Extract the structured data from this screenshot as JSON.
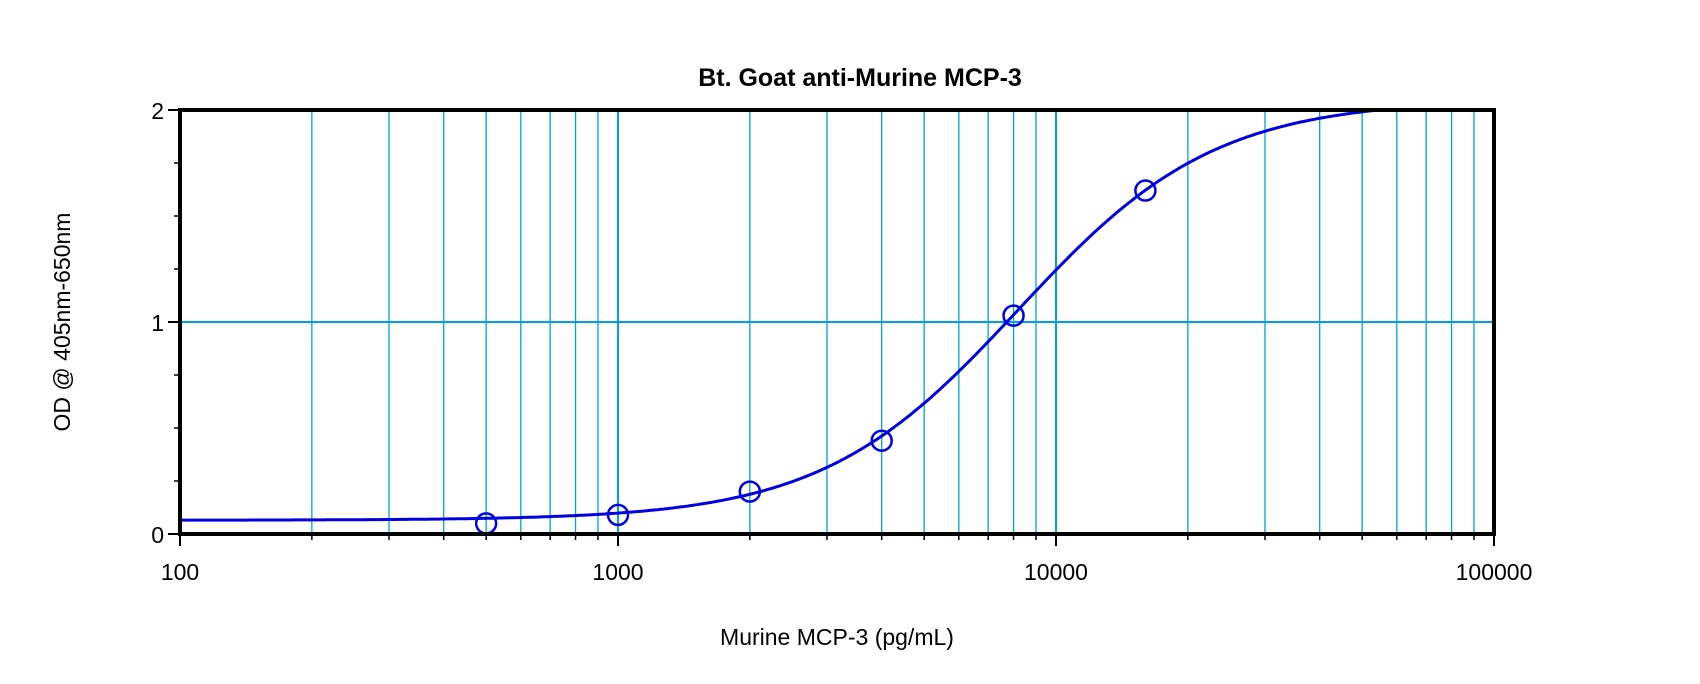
{
  "chart_data": {
    "type": "scatter",
    "title": "Bt. Goat anti-Murine MCP-3",
    "xlabel": "Murine MCP-3 (pg/mL)",
    "ylabel": "OD @ 405nm-650nm",
    "xscale": "log",
    "xlim": [
      100,
      100000
    ],
    "ylim": [
      0,
      2
    ],
    "xticks": [
      "100",
      "1000",
      "10000",
      "100000"
    ],
    "yticks": [
      "0",
      "1",
      "2"
    ],
    "grid": true,
    "points": {
      "x": [
        500,
        1000,
        2000,
        4000,
        8000,
        16000
      ],
      "y": [
        0.05,
        0.09,
        0.2,
        0.44,
        1.03,
        1.62
      ]
    },
    "fit": {
      "model": "4PL",
      "bottom": 0.065,
      "top": 2.05,
      "ec50": 8200,
      "slope": 1.93
    },
    "colors": {
      "grid": "#00a0e0",
      "curve": "#0000e0",
      "axis": "#000000"
    }
  }
}
